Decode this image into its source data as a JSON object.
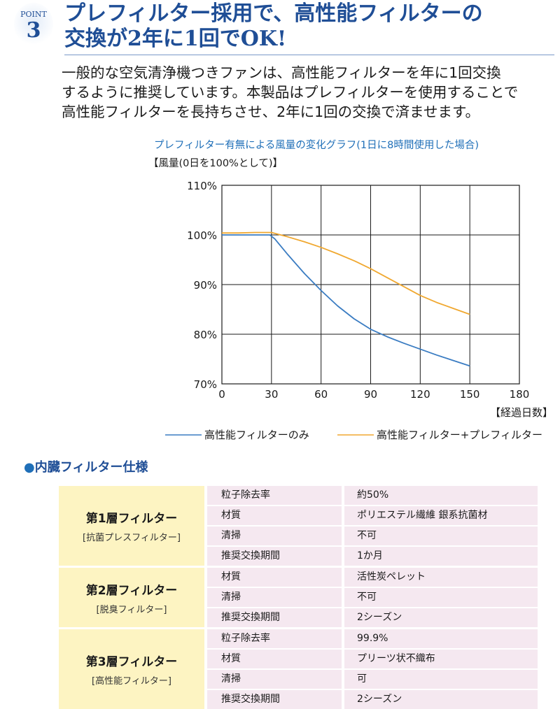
{
  "badge": {
    "label": "POINT",
    "number": "3"
  },
  "headline": {
    "line1": "プレフィルター採用で、高性能フィルターの",
    "line2": "交換が2年に1回でOK!"
  },
  "description": [
    "一般的な空気清浄機つきファンは、高性能フィルターを年に1回交換",
    "するように推奨しています。本製品はプレフィルターを使用することで",
    "高性能フィルターを長持ちさせ、2年に1回の交換で済ませます。"
  ],
  "chart_data": {
    "type": "line",
    "title": "プレフィルター有無による風量の変化グラフ(1日に8時間使用した場合)",
    "ylabel": "【風量(0日を100%として)】",
    "xlabel": "【経過日数】",
    "xlim": [
      0,
      180
    ],
    "ylim": [
      70,
      110
    ],
    "xticks": [
      "0",
      "30",
      "60",
      "90",
      "120",
      "150",
      "180"
    ],
    "xtick_values": [
      0,
      30,
      60,
      90,
      120,
      150,
      180
    ],
    "yticks": [
      "110%",
      "100%",
      "90%",
      "80%",
      "70%"
    ],
    "ytick_values": [
      110,
      100,
      90,
      80,
      70
    ],
    "grid": true,
    "series": [
      {
        "name": "高性能フィルターのみ",
        "color": "#3a7cc2",
        "x": [
          0,
          29,
          32,
          40,
          50,
          60,
          70,
          80,
          90,
          100,
          110,
          120,
          130,
          140,
          150
        ],
        "y": [
          100,
          100,
          99.2,
          96,
          92.2,
          88.8,
          85.7,
          83.1,
          81,
          79.5,
          78.2,
          77,
          75.8,
          74.7,
          73.6
        ]
      },
      {
        "name": "高性能フィルター+プレフィルター",
        "color": "#f0a830",
        "x": [
          0,
          10,
          20,
          30,
          40,
          50,
          60,
          70,
          80,
          90,
          100,
          110,
          120,
          130,
          140,
          150
        ],
        "y": [
          100.4,
          100.4,
          100.5,
          100.5,
          99.6,
          98.6,
          97.5,
          96.2,
          94.8,
          93.2,
          91.4,
          89.6,
          87.8,
          86.4,
          85.2,
          84
        ]
      }
    ]
  },
  "spec": {
    "title": "内臓フィルター仕様",
    "layers": [
      {
        "name": "第1層フィルター",
        "sub": "[抗菌プレスフィルター]",
        "rows": [
          {
            "key": "粒子除去率",
            "value": "約50%"
          },
          {
            "key": "材質",
            "value": "ポリエステル繊維 銀系抗菌材"
          },
          {
            "key": "清掃",
            "value": "不可"
          },
          {
            "key": "推奨交換期間",
            "value": "1か月"
          }
        ]
      },
      {
        "name": "第2層フィルター",
        "sub": "[脱臭フィルター]",
        "rows": [
          {
            "key": "材質",
            "value": "活性炭ペレット"
          },
          {
            "key": "清掃",
            "value": "不可"
          },
          {
            "key": "推奨交換期間",
            "value": "2シーズン"
          }
        ]
      },
      {
        "name": "第3層フィルター",
        "sub": "[高性能フィルター]",
        "rows": [
          {
            "key": "粒子除去率",
            "value": "99.9%"
          },
          {
            "key": "材質",
            "value": "プリーツ状不織布"
          },
          {
            "key": "清掃",
            "value": "可"
          },
          {
            "key": "推奨交換期間",
            "value": "2シーズン"
          }
        ]
      }
    ]
  }
}
